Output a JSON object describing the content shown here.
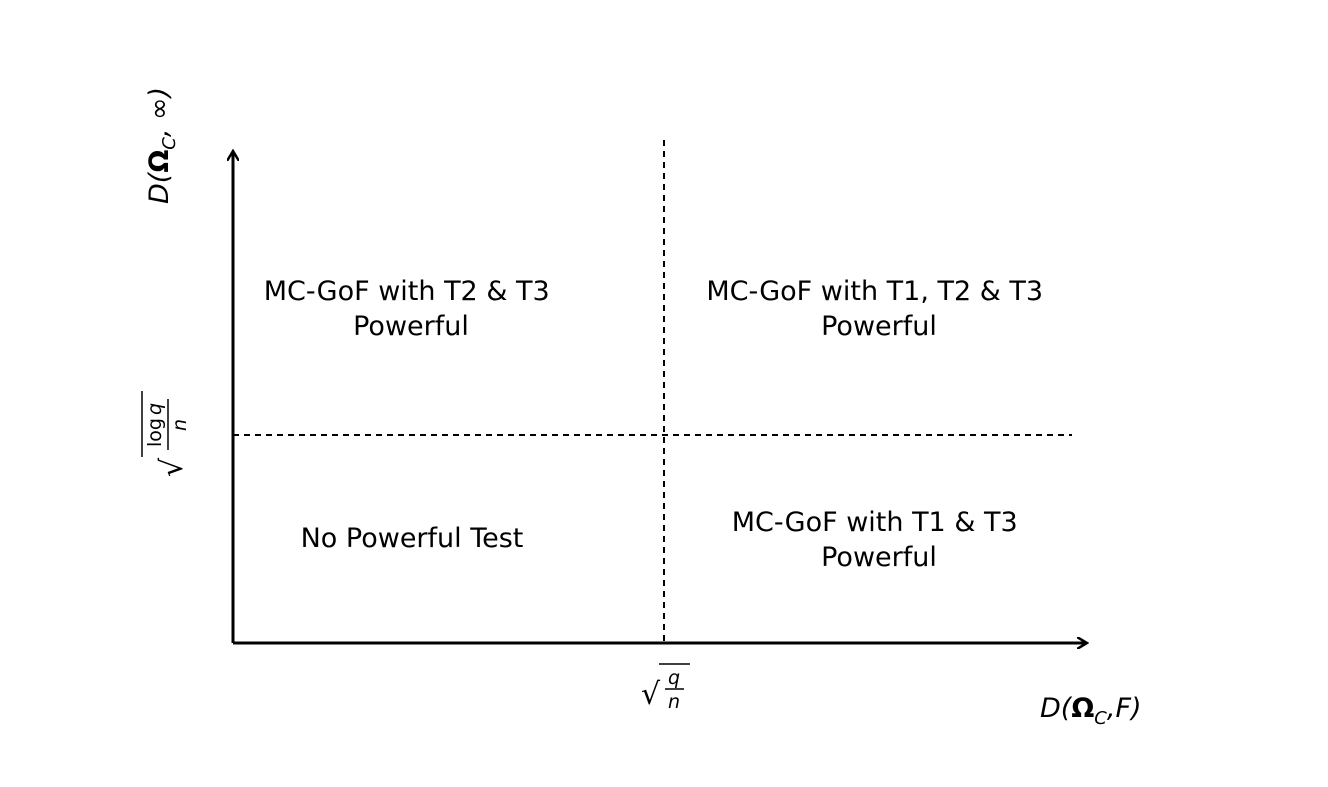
{
  "axes": {
    "x_label": {
      "prefix": "D(",
      "bold": "Ω",
      "subscript": "C",
      "suffix": ",F)"
    },
    "y_label": {
      "prefix": "D(",
      "bold": "Ω",
      "subscript": "C",
      "suffix": ", ∞)"
    },
    "x_threshold": {
      "root": "√",
      "numerator": "q",
      "denominator": "n"
    },
    "y_threshold": {
      "root": "√",
      "numerator_fn": "log",
      "numerator_var": "q",
      "denominator": "n"
    }
  },
  "regions": {
    "top_left": {
      "line1": "MC-GoF with T2 & T3",
      "line2": "Powerful"
    },
    "top_right": {
      "line1": "MC-GoF with T1, T2 & T3",
      "line2": "Powerful"
    },
    "bottom_left": {
      "line1": "No Powerful Test"
    },
    "bottom_right": {
      "line1": "MC-GoF with T1 & T3",
      "line2": "Powerful"
    }
  }
}
